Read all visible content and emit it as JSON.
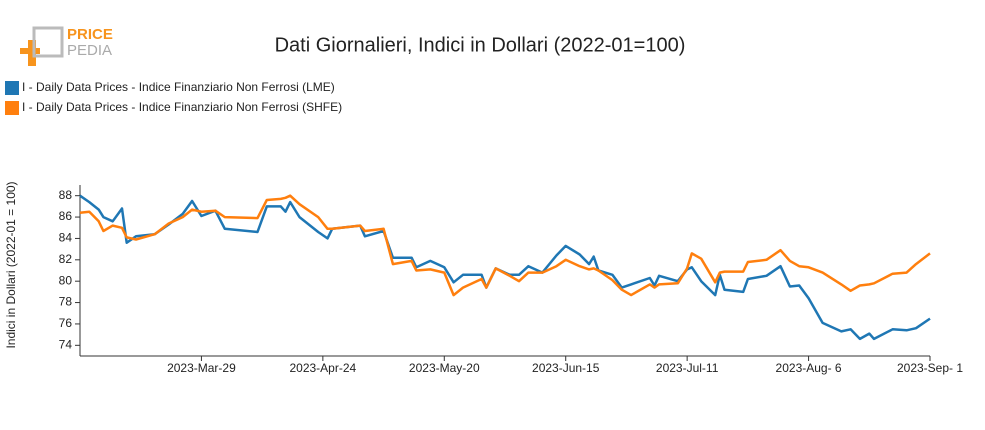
{
  "logo": {
    "line1": "PRICE",
    "line2": "PEDIA"
  },
  "chart_data": {
    "type": "line",
    "title": "Dati Giornalieri, Indici in Dollari (2022-01=100)",
    "y_label": "Indici in Dollari (2022-01 = 100)",
    "x": [
      "2023-03-03",
      "2023-03-05",
      "2023-03-07",
      "2023-03-08",
      "2023-03-10",
      "2023-03-12",
      "2023-03-13",
      "2023-03-15",
      "2023-03-19",
      "2023-03-22",
      "2023-03-25",
      "2023-03-27",
      "2023-03-29",
      "2023-04-01",
      "2023-04-03",
      "2023-04-10",
      "2023-04-12",
      "2023-04-15",
      "2023-04-16",
      "2023-04-17",
      "2023-04-19",
      "2023-04-23",
      "2023-04-25",
      "2023-04-26",
      "2023-05-02",
      "2023-05-03",
      "2023-05-07",
      "2023-05-09",
      "2023-05-13",
      "2023-05-14",
      "2023-05-17",
      "2023-05-20",
      "2023-05-22",
      "2023-05-24",
      "2023-05-28",
      "2023-05-29",
      "2023-05-31",
      "2023-06-03",
      "2023-06-05",
      "2023-06-07",
      "2023-06-10",
      "2023-06-13",
      "2023-06-15",
      "2023-06-18",
      "2023-06-20",
      "2023-06-21",
      "2023-06-22",
      "2023-06-25",
      "2023-06-27",
      "2023-06-29",
      "2023-07-03",
      "2023-07-04",
      "2023-07-05",
      "2023-07-09",
      "2023-07-11",
      "2023-07-12",
      "2023-07-14",
      "2023-07-17",
      "2023-07-18",
      "2023-07-19",
      "2023-07-23",
      "2023-07-24",
      "2023-07-28",
      "2023-07-31",
      "2023-08-02",
      "2023-08-04",
      "2023-08-06",
      "2023-08-09",
      "2023-08-13",
      "2023-08-15",
      "2023-08-17",
      "2023-08-19",
      "2023-08-20",
      "2023-08-24",
      "2023-08-27",
      "2023-08-29",
      "2023-09-01"
    ],
    "series": [
      {
        "name": "I - Daily Data Prices - Indice Finanziario Non Ferrosi (LME)",
        "color": "#1f77b4",
        "values": [
          88.0,
          87.4,
          86.7,
          86.0,
          85.6,
          86.8,
          83.6,
          84.2,
          84.4,
          85.3,
          86.3,
          87.5,
          86.1,
          86.6,
          84.9,
          84.6,
          87.0,
          87.0,
          86.5,
          87.4,
          86.0,
          84.6,
          84.0,
          84.9,
          85.2,
          84.2,
          84.7,
          82.2,
          82.2,
          81.3,
          81.9,
          81.3,
          79.9,
          80.6,
          80.6,
          79.4,
          81.2,
          80.6,
          80.6,
          81.4,
          80.8,
          82.4,
          83.3,
          82.5,
          81.6,
          82.3,
          81.0,
          80.6,
          79.4,
          79.7,
          80.3,
          79.6,
          80.5,
          80.0,
          81.1,
          81.3,
          80.0,
          78.7,
          80.6,
          79.2,
          79.0,
          80.2,
          80.5,
          81.4,
          79.5,
          79.6,
          78.4,
          76.1,
          75.3,
          75.5,
          74.6,
          75.1,
          74.6,
          75.5,
          75.4,
          75.6,
          76.5
        ]
      },
      {
        "name": "I - Daily Data Prices - Indice Finanziario Non Ferrosi (SHFE)",
        "color": "#ff7f0e",
        "values": [
          86.4,
          86.5,
          85.6,
          84.7,
          85.2,
          85.0,
          84.1,
          83.9,
          84.4,
          85.4,
          86.0,
          86.7,
          86.5,
          86.6,
          86.0,
          85.9,
          87.6,
          87.7,
          87.8,
          88.0,
          87.2,
          86.0,
          84.9,
          84.9,
          85.2,
          84.7,
          84.9,
          81.6,
          81.9,
          81.0,
          81.1,
          80.8,
          78.7,
          79.4,
          80.2,
          79.4,
          81.2,
          80.5,
          80.0,
          80.8,
          80.8,
          81.4,
          82.0,
          81.4,
          81.1,
          81.2,
          81.0,
          80.1,
          79.2,
          78.7,
          79.7,
          79.4,
          79.7,
          79.8,
          81.2,
          82.6,
          82.1,
          79.9,
          80.8,
          80.9,
          80.9,
          81.8,
          82.0,
          82.9,
          81.9,
          81.4,
          81.3,
          80.8,
          79.7,
          79.1,
          79.6,
          79.7,
          79.8,
          80.7,
          80.8,
          81.6,
          82.6
        ]
      }
    ],
    "xlim": [
      "2023-03-03",
      "2023-09-01"
    ],
    "xticks": [
      {
        "value": "2023-03-29",
        "label": "2023-Mar-29"
      },
      {
        "value": "2023-04-24",
        "label": "2023-Apr-24"
      },
      {
        "value": "2023-05-20",
        "label": "2023-May-20"
      },
      {
        "value": "2023-06-15",
        "label": "2023-Jun-15"
      },
      {
        "value": "2023-07-11",
        "label": "2023-Jul-11"
      },
      {
        "value": "2023-08-06",
        "label": "2023-Aug- 6"
      },
      {
        "value": "2023-09-01",
        "label": "2023-Sep- 1"
      }
    ],
    "ylim": [
      73,
      89
    ],
    "yticks": [
      74,
      76,
      78,
      80,
      82,
      84,
      86,
      88
    ],
    "legend": "top-left",
    "grid": false
  }
}
